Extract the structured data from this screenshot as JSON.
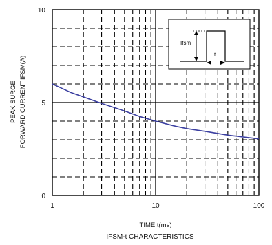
{
  "chart_data": {
    "type": "line",
    "title": "IFSM-t CHARACTERISTICS",
    "xlabel": "TIME:t(ms)",
    "ylabel_line1": "PEAK SURGE",
    "ylabel_line2": "FORWARD CURRENT:IFSM(A)",
    "x_scale": "log",
    "xlim": [
      1,
      100
    ],
    "ylim": [
      0,
      10
    ],
    "x_ticks": [
      "1",
      "10",
      "100"
    ],
    "y_ticks": [
      "0",
      "5",
      "10"
    ],
    "grid": "dashed",
    "series": [
      {
        "color": "#3b3fa0",
        "x": [
          1,
          1.5,
          2,
          3,
          5,
          7,
          10,
          15,
          20,
          30,
          50,
          70,
          100
        ],
        "y": [
          6.0,
          5.55,
          5.3,
          4.95,
          4.55,
          4.25,
          4.0,
          3.75,
          3.6,
          3.45,
          3.25,
          3.15,
          3.05
        ]
      }
    ],
    "inset": {
      "current_label": "Ifsm",
      "time_label": "t"
    }
  }
}
